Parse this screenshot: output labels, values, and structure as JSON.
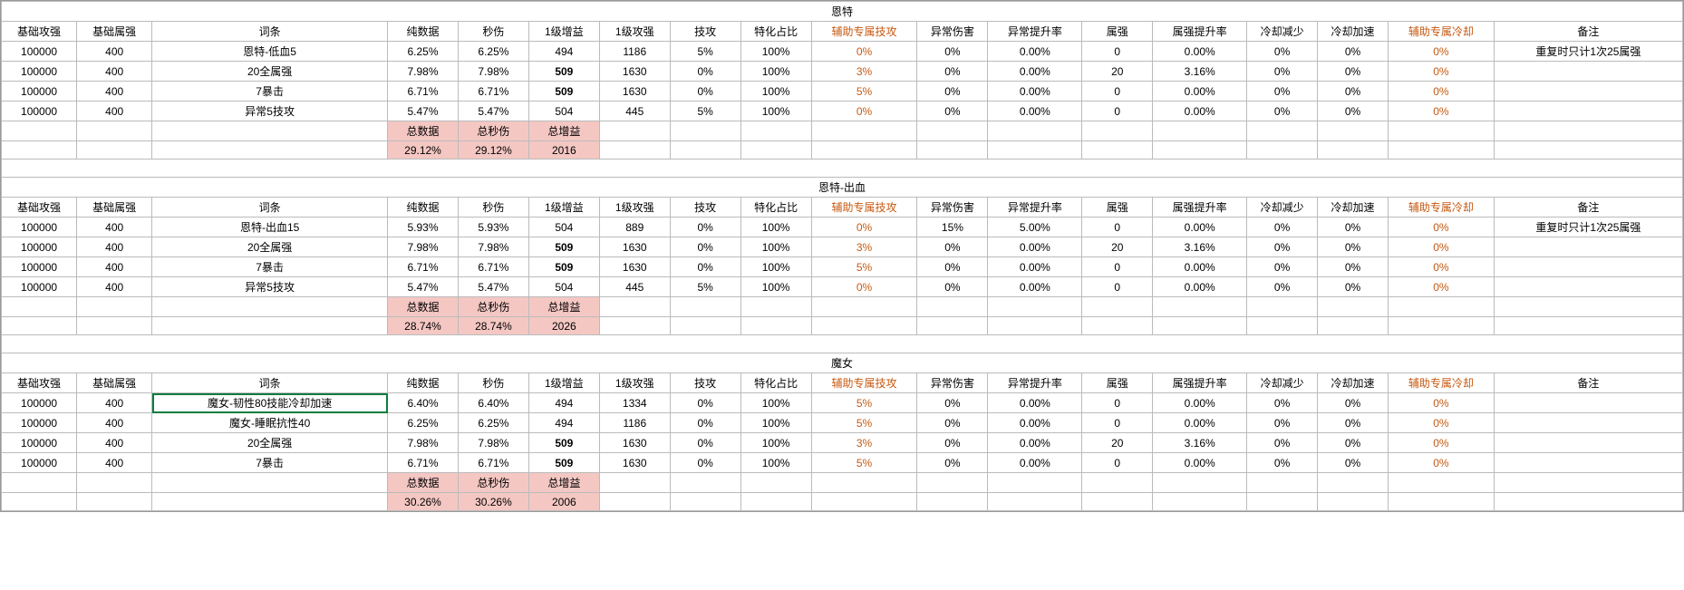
{
  "headers": {
    "c0": "基础攻强",
    "c1": "基础属强",
    "c2": "词条",
    "c3": "纯数据",
    "c4": "秒伤",
    "c5": "1级增益",
    "c6": "1级攻强",
    "c7": "技攻",
    "c8": "特化占比",
    "c9": "辅助专属技攻",
    "c10": "异常伤害",
    "c11": "异常提升率",
    "c12": "属强",
    "c13": "属强提升率",
    "c14": "冷却减少",
    "c15": "冷却加速",
    "c16": "辅助专属冷却",
    "c17": "备注"
  },
  "totals_headers": {
    "t0": "总数据",
    "t1": "总秒伤",
    "t2": "总增益"
  },
  "sections": [
    {
      "title": "恩特",
      "rows": [
        {
          "c0": "100000",
          "c1": "400",
          "c2": "恩特-低血5",
          "c3": "6.25%",
          "c4": "6.25%",
          "c5": "494",
          "c6": "1186",
          "c7": "5%",
          "c8": "100%",
          "c9": "0%",
          "c10": "0%",
          "c11": "0.00%",
          "c12": "0",
          "c13": "0.00%",
          "c14": "0%",
          "c15": "0%",
          "c16": "0%",
          "c17": "重复时只计1次25属强",
          "bold5": false
        },
        {
          "c0": "100000",
          "c1": "400",
          "c2": "20全属强",
          "c3": "7.98%",
          "c4": "7.98%",
          "c5": "509",
          "c6": "1630",
          "c7": "0%",
          "c8": "100%",
          "c9": "3%",
          "c10": "0%",
          "c11": "0.00%",
          "c12": "20",
          "c13": "3.16%",
          "c14": "0%",
          "c15": "0%",
          "c16": "0%",
          "c17": "",
          "bold5": true
        },
        {
          "c0": "100000",
          "c1": "400",
          "c2": "7暴击",
          "c3": "6.71%",
          "c4": "6.71%",
          "c5": "509",
          "c6": "1630",
          "c7": "0%",
          "c8": "100%",
          "c9": "5%",
          "c10": "0%",
          "c11": "0.00%",
          "c12": "0",
          "c13": "0.00%",
          "c14": "0%",
          "c15": "0%",
          "c16": "0%",
          "c17": "",
          "bold5": true
        },
        {
          "c0": "100000",
          "c1": "400",
          "c2": "异常5技攻",
          "c3": "5.47%",
          "c4": "5.47%",
          "c5": "504",
          "c6": "445",
          "c7": "5%",
          "c8": "100%",
          "c9": "0%",
          "c10": "0%",
          "c11": "0.00%",
          "c12": "0",
          "c13": "0.00%",
          "c14": "0%",
          "c15": "0%",
          "c16": "0%",
          "c17": "",
          "bold5": false
        }
      ],
      "totals": {
        "t0": "29.12%",
        "t1": "29.12%",
        "t2": "2016"
      }
    },
    {
      "title": "恩特-出血",
      "rows": [
        {
          "c0": "100000",
          "c1": "400",
          "c2": "恩特-出血15",
          "c3": "5.93%",
          "c4": "5.93%",
          "c5": "504",
          "c6": "889",
          "c7": "0%",
          "c8": "100%",
          "c9": "0%",
          "c10": "15%",
          "c11": "5.00%",
          "c12": "0",
          "c13": "0.00%",
          "c14": "0%",
          "c15": "0%",
          "c16": "0%",
          "c17": "重复时只计1次25属强",
          "bold5": false
        },
        {
          "c0": "100000",
          "c1": "400",
          "c2": "20全属强",
          "c3": "7.98%",
          "c4": "7.98%",
          "c5": "509",
          "c6": "1630",
          "c7": "0%",
          "c8": "100%",
          "c9": "3%",
          "c10": "0%",
          "c11": "0.00%",
          "c12": "20",
          "c13": "3.16%",
          "c14": "0%",
          "c15": "0%",
          "c16": "0%",
          "c17": "",
          "bold5": true
        },
        {
          "c0": "100000",
          "c1": "400",
          "c2": "7暴击",
          "c3": "6.71%",
          "c4": "6.71%",
          "c5": "509",
          "c6": "1630",
          "c7": "0%",
          "c8": "100%",
          "c9": "5%",
          "c10": "0%",
          "c11": "0.00%",
          "c12": "0",
          "c13": "0.00%",
          "c14": "0%",
          "c15": "0%",
          "c16": "0%",
          "c17": "",
          "bold5": true
        },
        {
          "c0": "100000",
          "c1": "400",
          "c2": "异常5技攻",
          "c3": "5.47%",
          "c4": "5.47%",
          "c5": "504",
          "c6": "445",
          "c7": "5%",
          "c8": "100%",
          "c9": "0%",
          "c10": "0%",
          "c11": "0.00%",
          "c12": "0",
          "c13": "0.00%",
          "c14": "0%",
          "c15": "0%",
          "c16": "0%",
          "c17": "",
          "bold5": false
        }
      ],
      "totals": {
        "t0": "28.74%",
        "t1": "28.74%",
        "t2": "2026"
      }
    },
    {
      "title": "魔女",
      "rows": [
        {
          "c0": "100000",
          "c1": "400",
          "c2": "魔女-韧性80技能冷却加速",
          "c3": "6.40%",
          "c4": "6.40%",
          "c5": "494",
          "c6": "1334",
          "c7": "0%",
          "c8": "100%",
          "c9": "5%",
          "c10": "0%",
          "c11": "0.00%",
          "c12": "0",
          "c13": "0.00%",
          "c14": "0%",
          "c15": "0%",
          "c16": "0%",
          "c17": "",
          "bold5": false,
          "green": true
        },
        {
          "c0": "100000",
          "c1": "400",
          "c2": "魔女-睡眠抗性40",
          "c3": "6.25%",
          "c4": "6.25%",
          "c5": "494",
          "c6": "1186",
          "c7": "0%",
          "c8": "100%",
          "c9": "5%",
          "c10": "0%",
          "c11": "0.00%",
          "c12": "0",
          "c13": "0.00%",
          "c14": "0%",
          "c15": "0%",
          "c16": "0%",
          "c17": "",
          "bold5": false
        },
        {
          "c0": "100000",
          "c1": "400",
          "c2": "20全属强",
          "c3": "7.98%",
          "c4": "7.98%",
          "c5": "509",
          "c6": "1630",
          "c7": "0%",
          "c8": "100%",
          "c9": "3%",
          "c10": "0%",
          "c11": "0.00%",
          "c12": "20",
          "c13": "3.16%",
          "c14": "0%",
          "c15": "0%",
          "c16": "0%",
          "c17": "",
          "bold5": true
        },
        {
          "c0": "100000",
          "c1": "400",
          "c2": "7暴击",
          "c3": "6.71%",
          "c4": "6.71%",
          "c5": "509",
          "c6": "1630",
          "c7": "0%",
          "c8": "100%",
          "c9": "5%",
          "c10": "0%",
          "c11": "0.00%",
          "c12": "0",
          "c13": "0.00%",
          "c14": "0%",
          "c15": "0%",
          "c16": "0%",
          "c17": "",
          "bold5": true
        }
      ],
      "totals": {
        "t0": "30.26%",
        "t1": "30.26%",
        "t2": "2006"
      }
    }
  ],
  "orange_cols": [
    "c9",
    "c16"
  ]
}
